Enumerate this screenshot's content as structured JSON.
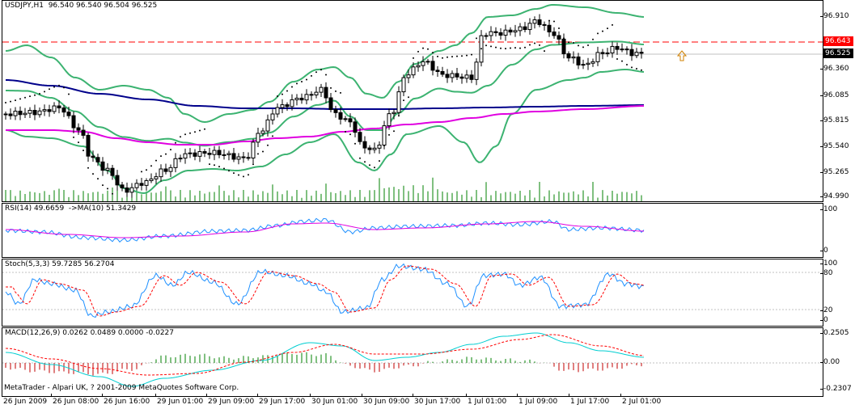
{
  "main": {
    "title": "USDJPY,H1  96.540 96.540 96.504 96.525",
    "price_labels": [
      "96.910",
      "96.360",
      "96.085",
      "95.815",
      "95.540",
      "95.265",
      "94.990"
    ],
    "ref_line_value": "96.643",
    "ref_line_color": "#FF0000",
    "bid_value": "96.525",
    "trend_arrow_icon": "up-arrow-icon"
  },
  "rsi": {
    "title": "RSI(14) 49.6659  ->MA(10) 51.3429",
    "labels": [
      "100",
      "0"
    ]
  },
  "stoch": {
    "title": "Stoch(5,3,3) 59.7285 56.2704",
    "labels": [
      "100",
      "80",
      "20",
      "0"
    ]
  },
  "macd": {
    "title": "MACD(12,26,9) 0.0262 0.0489 0.0000 -0.0227",
    "labels": [
      "0.2505",
      "0.00",
      "-0.2307"
    ]
  },
  "footer": "MetaTrader - Alpari UK, ? 2001-2009 MetaQuotes Software Corp.",
  "time_labels": [
    "26 Jun 2009",
    "26 Jun 08:00",
    "26 Jun 16:00",
    "29 Jun 01:00",
    "29 Jun 09:00",
    "29 Jun 17:00",
    "30 Jun 01:00",
    "30 Jun 09:00",
    "30 Jun 17:00",
    "1 Jul 01:00",
    "1 Jul 09:00",
    "1 Jul 17:00",
    "2 Jul 01:00"
  ],
  "colors": {
    "bollinger": "#3CB371",
    "ma_slow": "#00008B",
    "ma_fast": "#E000E0",
    "sar": "#000000",
    "volume": "#008000",
    "rsi": "#1E90FF",
    "rsi_ma": "#E000E0",
    "stoch_main": "#1E90FF",
    "stoch_signal": "#FF0000",
    "macd_pos": "#008000",
    "macd_neg": "#C00000",
    "macd_line": "#00CED1",
    "macd_signal": "#FF0000"
  }
}
